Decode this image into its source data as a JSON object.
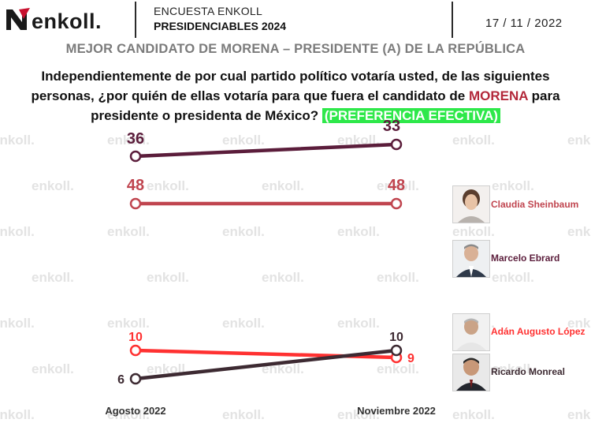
{
  "header": {
    "logo_text": "enkoll.",
    "survey_line1": "ENCUESTA ENKOLL",
    "survey_line2": "PRESIDENCIABLES 2024",
    "date": "17 / 11 / 2022"
  },
  "subtitle": "MEJOR CANDIDATO DE MORENA – PRESIDENTE (A) DE LA REPÚBLICA",
  "question": {
    "part1": "Independientemente de por cual partido político votaría usted, de las siguientes personas, ¿por quién de ellas votaría para que fuera el candidato de ",
    "highlight": "MORENA",
    "part2": " para presidente o presidenta de México? ",
    "tag": "(PREFERENCIA EFECTIVA)"
  },
  "watermark": "enkoll.",
  "colors": {
    "sheinbaum": "#c0454f",
    "ebrard": "#5b1d3b",
    "adan": "#ff3131",
    "monreal": "#3d2a32",
    "accent_red": "#b3283a",
    "accent_green": "#2ee84a"
  },
  "chart_data": {
    "type": "line",
    "categories": [
      "Agosto 2022",
      "Noviembre 2022"
    ],
    "series": [
      {
        "name": "Claudia Sheinbaum",
        "values": [
          48,
          48
        ],
        "color": "#c0454f"
      },
      {
        "name": "Marcelo Ebrard",
        "values": [
          36,
          33
        ],
        "color": "#5b1d3b"
      },
      {
        "name": "Adán Augusto López",
        "values": [
          10,
          9
        ],
        "color": "#ff3131"
      },
      {
        "name": "Ricardo Monreal",
        "values": [
          6,
          10
        ],
        "color": "#3d2a32"
      }
    ],
    "title": "",
    "xlabel": "",
    "ylabel": "",
    "grid": false,
    "legend": "right"
  }
}
